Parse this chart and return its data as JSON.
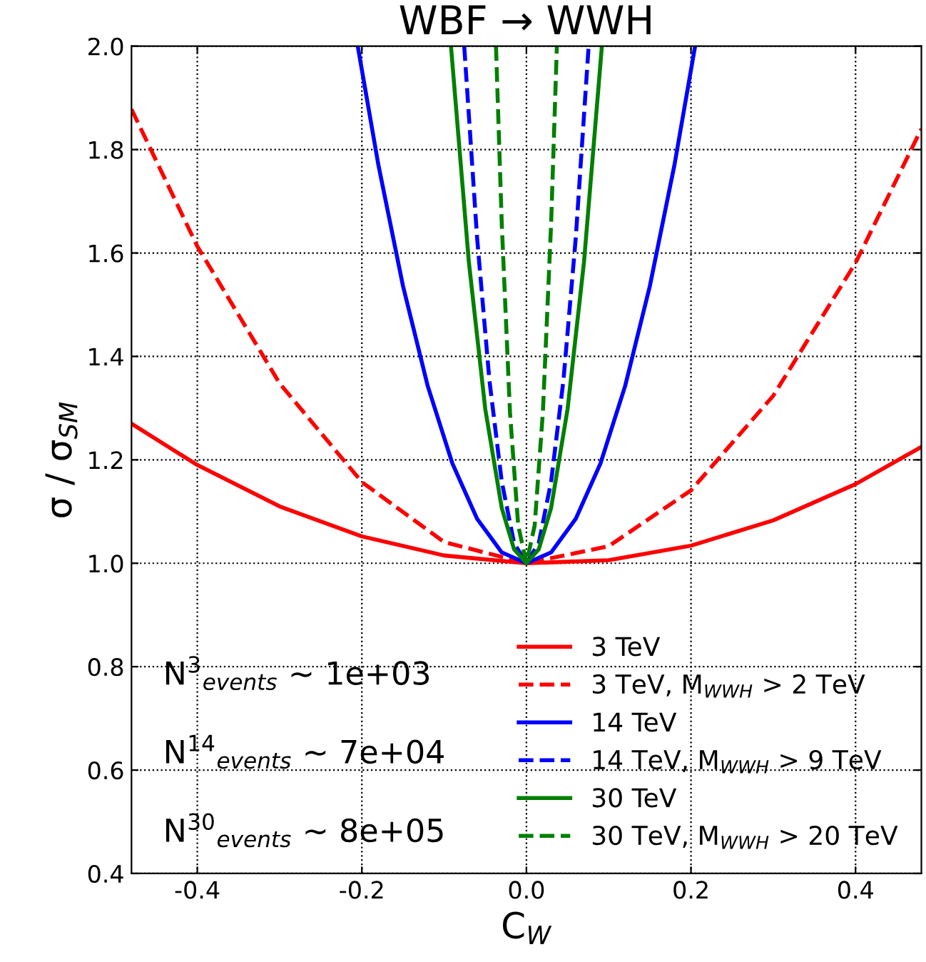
{
  "chart_data": {
    "type": "line",
    "title": "WBF → WWH",
    "xlabel": "C$_{W}$",
    "ylabel": "σ / σ$_{SM}$",
    "xlim": [
      -0.48,
      0.48
    ],
    "ylim": [
      0.4,
      2.0
    ],
    "xticks": [
      -0.4,
      -0.2,
      {
        "value": 0,
        "label": "0.0"
      },
      0.2,
      0.4
    ],
    "yticks": [
      0.4,
      0.6,
      0.8,
      {
        "value": 1,
        "label": "1.0"
      },
      1.2,
      1.4,
      1.6,
      1.8,
      {
        "value": 2,
        "label": "2.0"
      }
    ],
    "grid": true,
    "legend": "bottom right",
    "marker": "none",
    "annotations": [
      "N$^{3}$$_{events}$ ∼ 1e+03",
      "N$^{14}$$_{events}$ ∼ 7e+04",
      "N$^{30}$$_{events}$ ∼ 8e+05"
    ],
    "series": [
      {
        "name": "3 TeV",
        "color": "#ff0000",
        "line_style": "solid",
        "x": [
          -0.48,
          -0.4,
          -0.3,
          -0.2,
          -0.1,
          0,
          0.1,
          0.2,
          0.3,
          0.4,
          0.48
        ],
        "values": [
          1.27,
          1.19,
          1.11,
          1.052,
          1.015,
          1,
          1.006,
          1.034,
          1.083,
          1.153,
          1.225
        ]
      },
      {
        "name": "3 TeV, M$_{WWH}$ > 2 TeV",
        "color": "#ff0000",
        "line_style": "dashed",
        "x": [
          -0.48,
          -0.4,
          -0.3,
          -0.2,
          -0.1,
          0,
          0.1,
          0.2,
          0.3,
          0.4,
          0.48
        ],
        "values": [
          1.878,
          1.613,
          1.348,
          1.157,
          1.041,
          1,
          1.033,
          1.141,
          1.324,
          1.581,
          1.84
        ]
      },
      {
        "name": "14 TeV",
        "color": "#0000ff",
        "line_style": "solid",
        "x": [
          -0.205,
          -0.18,
          -0.15,
          -0.12,
          -0.09,
          -0.06,
          -0.03,
          0,
          0.03,
          0.06,
          0.09,
          0.12,
          0.15,
          0.18,
          0.205
        ],
        "values": [
          2.0,
          1.771,
          1.536,
          1.343,
          1.193,
          1.086,
          1.021,
          1,
          1.021,
          1.086,
          1.193,
          1.343,
          1.536,
          1.771,
          2.0
        ]
      },
      {
        "name": "14 TeV, M$_{WWH}$ > 9 TeV",
        "color": "#0000ff",
        "line_style": "dashed",
        "x": [
          -0.0756,
          -0.06,
          -0.045,
          -0.03,
          -0.015,
          0,
          0.015,
          0.03,
          0.045,
          0.06,
          0.0756
        ],
        "values": [
          2.0,
          1.63,
          1.354,
          1.158,
          1.039,
          1,
          1.039,
          1.158,
          1.354,
          1.63,
          2.0
        ]
      },
      {
        "name": "30 TeV",
        "color": "#008000",
        "line_style": "solid",
        "x": [
          -0.0917,
          -0.07,
          -0.05,
          -0.03,
          -0.015,
          0,
          0.015,
          0.03,
          0.05,
          0.07,
          0.0917
        ],
        "values": [
          2.0,
          1.583,
          1.298,
          1.107,
          1.027,
          1,
          1.027,
          1.107,
          1.298,
          1.583,
          2.0
        ]
      },
      {
        "name": "30 TeV, M$_{WWH}$ > 20 TeV",
        "color": "#008000",
        "line_style": "dashed",
        "x": [
          -0.037,
          -0.03,
          -0.02,
          -0.01,
          0,
          0.01,
          0.02,
          0.03,
          0.037
        ],
        "values": [
          2.0,
          1.657,
          1.292,
          1.073,
          1,
          1.073,
          1.292,
          1.657,
          2.0
        ]
      }
    ]
  }
}
